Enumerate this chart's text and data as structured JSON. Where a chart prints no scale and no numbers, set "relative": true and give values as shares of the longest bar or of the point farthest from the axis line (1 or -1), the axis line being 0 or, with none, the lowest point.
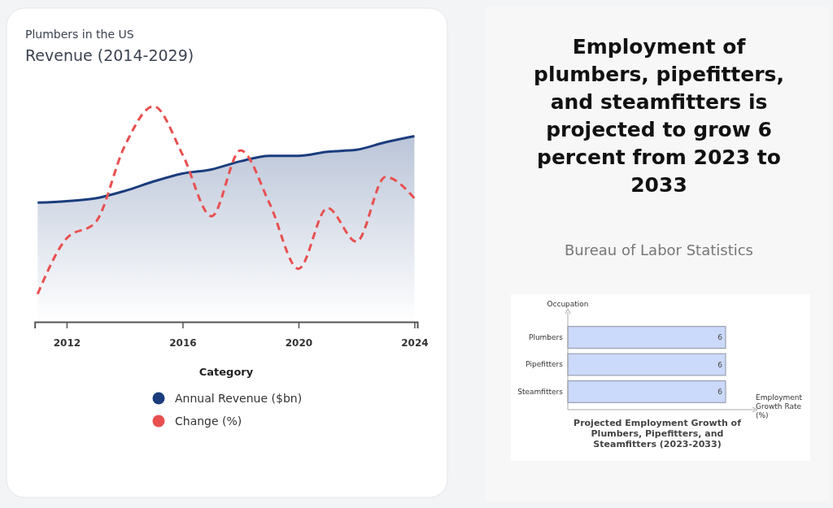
{
  "chart_data": [
    {
      "type": "line",
      "title": "Plumbers in the US",
      "subtitle": "Revenue (2014-2029)",
      "xlabel": "Category",
      "relative": true,
      "x": [
        2011,
        2012,
        2013,
        2014,
        2015,
        2016,
        2017,
        2018,
        2019,
        2020,
        2021,
        2022,
        2023,
        2024
      ],
      "xlim": [
        2010.9,
        2024.1
      ],
      "xticks": [
        2012,
        2016,
        2020,
        2024
      ],
      "tick_labels": "x",
      "legend": "bottom",
      "marker": "none",
      "series": [
        {
          "name": "Annual Revenue ($bn)",
          "type": "area",
          "color": "#1b3d7d",
          "line_style": "solid",
          "values": [
            0.553,
            0.56,
            0.573,
            0.607,
            0.651,
            0.688,
            0.707,
            0.745,
            0.77,
            0.77,
            0.789,
            0.798,
            0.833,
            0.861
          ]
        },
        {
          "name": "Change (%)",
          "type": "line",
          "color": "#e8504f",
          "line_style": "dashed",
          "values": [
            0.129,
            0.387,
            0.462,
            0.814,
            1.0,
            0.776,
            0.49,
            0.795,
            0.55,
            0.246,
            0.528,
            0.372,
            0.672,
            0.573
          ]
        }
      ]
    },
    {
      "type": "bar",
      "orientation": "horizontal",
      "title": "Employment of plumbers, pipefitters, and steamfitters is projected to grow 6 percent from 2023 to 2033",
      "subtitle": "Bureau of Labor Statistics",
      "annotations": [
        "Projected Employment Growth of Plumbers, Pipefitters, and Steamfitters (2023-2033)"
      ],
      "ylabel": "Occupation",
      "xlabel": "Employment Growth Rate (%)",
      "categories": [
        "Plumbers",
        "Pipefitters",
        "Steamfitters"
      ],
      "values": [
        6,
        6,
        6
      ],
      "color": "#cbd9fa",
      "tick_labels": "y",
      "data_labels": true
    }
  ]
}
